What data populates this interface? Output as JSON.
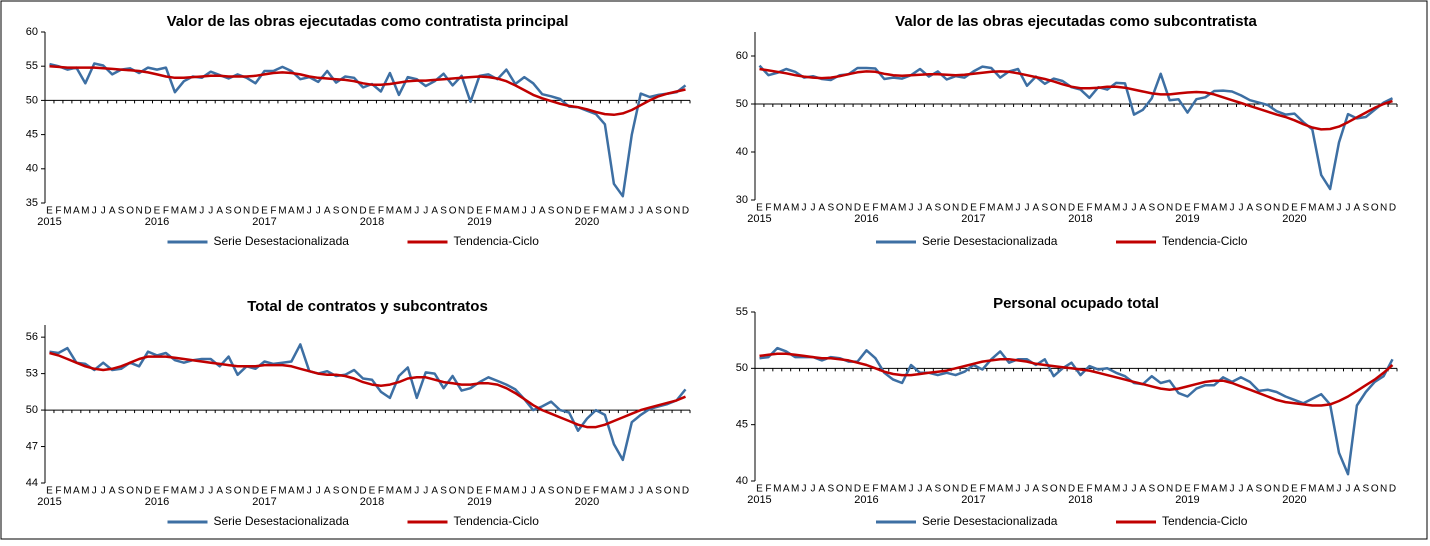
{
  "chart_data": [
    {
      "type": "line",
      "title": "Valor de las obras ejecutadas como contratista principal",
      "legend": "bottom",
      "baseline": 50,
      "categories": [
        "E",
        "F",
        "M",
        "A",
        "M",
        "J",
        "J",
        "A",
        "S",
        "O",
        "N",
        "D",
        "E",
        "F",
        "M",
        "A",
        "M",
        "J",
        "J",
        "A",
        "S",
        "O",
        "N",
        "D",
        "E",
        "F",
        "M",
        "A",
        "M",
        "J",
        "J",
        "A",
        "S",
        "O",
        "N",
        "D",
        "E",
        "F",
        "M",
        "A",
        "M",
        "J",
        "J",
        "A",
        "S",
        "O",
        "N",
        "D",
        "E",
        "F",
        "M",
        "A",
        "M",
        "J",
        "J",
        "A",
        "S",
        "O",
        "N",
        "D",
        "E",
        "F",
        "M",
        "A",
        "M",
        "J",
        "J",
        "A",
        "S",
        "O",
        "N",
        "D"
      ],
      "x_years": [
        "2015",
        "2016",
        "2017",
        "2018",
        "2019",
        "2020"
      ],
      "ylim": [
        35,
        60
      ],
      "yticks": [
        35,
        40,
        45,
        50,
        55,
        60
      ],
      "series": [
        {
          "name": "Serie Desestacionalizada",
          "color": "#3d6fa3",
          "values": [
            55.3,
            55,
            54.5,
            54.8,
            52.5,
            55.4,
            55.1,
            53.8,
            54.5,
            54.7,
            54,
            54.8,
            54.5,
            54.8,
            51.2,
            52.8,
            53.5,
            53.3,
            54.2,
            53.7,
            53.2,
            53.8,
            53.3,
            52.5,
            54.3,
            54.3,
            54.9,
            54.3,
            53.1,
            53.4,
            52.7,
            54.3,
            52.6,
            53.5,
            53.3,
            51.9,
            52.4,
            51.3,
            54,
            50.8,
            53.4,
            53.1,
            52.1,
            52.8,
            53.9,
            52.2,
            53.6,
            49.8,
            53.6,
            53.8,
            53.1,
            54.5,
            52.4,
            53.4,
            52.5,
            50.9,
            50.6,
            50.2,
            49.1,
            49,
            48.5,
            48,
            46.5,
            37.8,
            36,
            45,
            51,
            50.5,
            50.8,
            51,
            51.2,
            52.2
          ]
        },
        {
          "name": "Tendencia-Ciclo",
          "color": "#c00000",
          "values": [
            55,
            54.9,
            54.8,
            54.8,
            54.8,
            54.8,
            54.7,
            54.6,
            54.5,
            54.4,
            54.3,
            54.1,
            53.8,
            53.5,
            53.3,
            53.3,
            53.4,
            53.5,
            53.6,
            53.6,
            53.5,
            53.5,
            53.5,
            53.6,
            53.8,
            54,
            54.1,
            54,
            53.8,
            53.5,
            53.3,
            53.2,
            53.1,
            53,
            52.8,
            52.5,
            52.3,
            52.3,
            52.4,
            52.6,
            52.8,
            52.9,
            52.9,
            53,
            53.1,
            53.2,
            53.3,
            53.4,
            53.5,
            53.4,
            53.2,
            52.8,
            52.2,
            51.5,
            50.8,
            50.3,
            49.9,
            49.5,
            49.2,
            49,
            48.7,
            48.3,
            48,
            47.9,
            48.1,
            48.6,
            49.3,
            50,
            50.6,
            51,
            51.3,
            51.6
          ]
        }
      ]
    },
    {
      "type": "line",
      "title": "Valor de las obras ejecutadas como subcontratista",
      "legend": "bottom",
      "baseline": 50,
      "categories": [
        "E",
        "F",
        "M",
        "A",
        "M",
        "J",
        "J",
        "A",
        "S",
        "O",
        "N",
        "D",
        "E",
        "F",
        "M",
        "A",
        "M",
        "J",
        "J",
        "A",
        "S",
        "O",
        "N",
        "D",
        "E",
        "F",
        "M",
        "A",
        "M",
        "J",
        "J",
        "A",
        "S",
        "O",
        "N",
        "D",
        "E",
        "F",
        "M",
        "A",
        "M",
        "J",
        "J",
        "A",
        "S",
        "O",
        "N",
        "D",
        "E",
        "F",
        "M",
        "A",
        "M",
        "J",
        "J",
        "A",
        "S",
        "O",
        "N",
        "D",
        "E",
        "F",
        "M",
        "A",
        "M",
        "J",
        "J",
        "A",
        "S",
        "O",
        "N",
        "D"
      ],
      "x_years": [
        "2015",
        "2016",
        "2017",
        "2018",
        "2019",
        "2020"
      ],
      "ylim": [
        30,
        65
      ],
      "yticks": [
        30,
        40,
        50,
        60
      ],
      "series": [
        {
          "name": "Serie Desestacionalizada",
          "color": "#3d6fa3",
          "values": [
            58,
            56,
            56.5,
            57.3,
            56.7,
            55.5,
            55.8,
            55.2,
            55,
            56,
            56.2,
            57.5,
            57.5,
            57.4,
            55.2,
            55.5,
            55.3,
            56,
            57.3,
            55.7,
            56.8,
            55.1,
            55.8,
            55.5,
            56.8,
            57.8,
            57.5,
            55.5,
            56.8,
            57.3,
            53.8,
            55.7,
            54.2,
            55.3,
            54.8,
            53.5,
            53,
            51.3,
            53.5,
            53,
            54.4,
            54.3,
            47.8,
            48.8,
            51.2,
            56.3,
            50.8,
            51,
            48.2,
            51,
            51.4,
            52.7,
            52.8,
            52.6,
            51.8,
            50.8,
            50.3,
            49.8,
            48.5,
            47.8,
            48,
            46.2,
            44.7,
            35.2,
            32.3,
            42,
            47.9,
            47,
            47.3,
            48.8,
            50.3,
            51.2
          ]
        },
        {
          "name": "Tendencia-Ciclo",
          "color": "#c00000",
          "values": [
            57.3,
            57,
            56.7,
            56.4,
            56,
            55.7,
            55.5,
            55.4,
            55.5,
            55.8,
            56.2,
            56.6,
            56.8,
            56.7,
            56.3,
            56,
            55.9,
            56,
            56.1,
            56.2,
            56.2,
            56.1,
            56,
            56.1,
            56.3,
            56.5,
            56.7,
            56.8,
            56.7,
            56.4,
            56,
            55.6,
            55.2,
            54.7,
            54.1,
            53.6,
            53.3,
            53.3,
            53.4,
            53.6,
            53.6,
            53.4,
            53,
            52.6,
            52.2,
            52,
            52,
            52.2,
            52.4,
            52.5,
            52.4,
            52,
            51.4,
            50.8,
            50.2,
            49.6,
            49,
            48.4,
            47.8,
            47.3,
            46.6,
            45.8,
            45.1,
            44.7,
            44.8,
            45.3,
            46.2,
            47.2,
            48.2,
            49.2,
            50,
            50.6
          ]
        }
      ]
    },
    {
      "type": "line",
      "title": "Total de contratos y subcontratos",
      "legend": "bottom",
      "baseline": 50,
      "categories": [
        "E",
        "F",
        "M",
        "A",
        "M",
        "J",
        "J",
        "A",
        "S",
        "O",
        "N",
        "D",
        "E",
        "F",
        "M",
        "A",
        "M",
        "J",
        "J",
        "A",
        "S",
        "O",
        "N",
        "D",
        "E",
        "F",
        "M",
        "A",
        "M",
        "J",
        "J",
        "A",
        "S",
        "O",
        "N",
        "D",
        "E",
        "F",
        "M",
        "A",
        "M",
        "J",
        "J",
        "A",
        "S",
        "O",
        "N",
        "D",
        "E",
        "F",
        "M",
        "A",
        "M",
        "J",
        "J",
        "A",
        "S",
        "O",
        "N",
        "D",
        "E",
        "F",
        "M",
        "A",
        "M",
        "J",
        "J",
        "A",
        "S",
        "O",
        "N",
        "D"
      ],
      "x_years": [
        "2015",
        "2016",
        "2017",
        "2018",
        "2019",
        "2020"
      ],
      "ylim": [
        44,
        57
      ],
      "yticks": [
        44,
        47,
        50,
        53,
        56
      ],
      "series": [
        {
          "name": "Serie Desestacionalizada",
          "color": "#3d6fa3",
          "values": [
            54.8,
            54.7,
            55.1,
            53.9,
            53.8,
            53.3,
            53.9,
            53.3,
            53.4,
            53.9,
            53.6,
            54.8,
            54.5,
            54.7,
            54.1,
            53.9,
            54.1,
            54.2,
            54.2,
            53.6,
            54.4,
            52.9,
            53.6,
            53.4,
            54,
            53.8,
            53.9,
            54,
            55.4,
            53.2,
            53,
            53.2,
            52.8,
            52.9,
            53.3,
            52.6,
            52.5,
            51.5,
            51,
            52.8,
            53.5,
            51,
            53.1,
            53,
            51.8,
            52.8,
            51.6,
            51.8,
            52.3,
            52.7,
            52.4,
            52.1,
            51.7,
            50.9,
            50,
            50.3,
            50.7,
            50,
            49.8,
            48.3,
            49.3,
            50,
            49.6,
            47.2,
            45.9,
            49,
            49.6,
            50.1,
            50.3,
            50.5,
            50.8,
            51.7
          ]
        },
        {
          "name": "Tendencia-Ciclo",
          "color": "#c00000",
          "values": [
            54.7,
            54.5,
            54.2,
            53.9,
            53.6,
            53.4,
            53.3,
            53.4,
            53.6,
            53.9,
            54.2,
            54.4,
            54.4,
            54.4,
            54.3,
            54.2,
            54.1,
            54,
            53.9,
            53.8,
            53.7,
            53.6,
            53.6,
            53.6,
            53.7,
            53.7,
            53.7,
            53.6,
            53.4,
            53.2,
            53,
            52.9,
            52.9,
            52.8,
            52.6,
            52.3,
            52.1,
            52,
            52.1,
            52.3,
            52.6,
            52.7,
            52.7,
            52.5,
            52.3,
            52.2,
            52.1,
            52.1,
            52.2,
            52.2,
            52.1,
            51.8,
            51.4,
            50.9,
            50.4,
            50,
            49.7,
            49.4,
            49.1,
            48.8,
            48.6,
            48.6,
            48.8,
            49.1,
            49.4,
            49.7,
            50,
            50.2,
            50.4,
            50.6,
            50.8,
            51.1
          ]
        }
      ]
    },
    {
      "type": "line",
      "title": "Personal ocupado total",
      "legend": "bottom",
      "baseline": 50,
      "categories": [
        "E",
        "F",
        "M",
        "A",
        "M",
        "J",
        "J",
        "A",
        "S",
        "O",
        "N",
        "D",
        "E",
        "F",
        "M",
        "A",
        "M",
        "J",
        "J",
        "A",
        "S",
        "O",
        "N",
        "D",
        "E",
        "F",
        "M",
        "A",
        "M",
        "J",
        "J",
        "A",
        "S",
        "O",
        "N",
        "D",
        "E",
        "F",
        "M",
        "A",
        "M",
        "J",
        "J",
        "A",
        "S",
        "O",
        "N",
        "D",
        "E",
        "F",
        "M",
        "A",
        "M",
        "J",
        "J",
        "A",
        "S",
        "O",
        "N",
        "D",
        "E",
        "F",
        "M",
        "A",
        "M",
        "J",
        "J",
        "A",
        "S",
        "O",
        "N",
        "D"
      ],
      "x_years": [
        "2015",
        "2016",
        "2017",
        "2018",
        "2019",
        "2020"
      ],
      "ylim": [
        40,
        55
      ],
      "yticks": [
        40,
        45,
        50,
        55
      ],
      "series": [
        {
          "name": "Serie Desestacionalizada",
          "color": "#3d6fa3",
          "values": [
            50.9,
            51,
            51.8,
            51.5,
            51,
            51,
            51,
            50.7,
            51,
            50.9,
            50.6,
            50.6,
            51.6,
            50.9,
            49.6,
            49,
            48.7,
            50.3,
            49.6,
            49.6,
            49.4,
            49.6,
            49.4,
            49.7,
            50.3,
            49.9,
            50.8,
            51.5,
            50.5,
            50.8,
            50.8,
            50.3,
            50.8,
            49.3,
            50,
            50.5,
            49.4,
            50.2,
            49.9,
            50,
            49.6,
            49.3,
            48.7,
            48.6,
            49.3,
            48.7,
            48.9,
            47.8,
            47.5,
            48.2,
            48.5,
            48.5,
            49.2,
            48.8,
            49.2,
            48.8,
            48,
            48.1,
            47.9,
            47.5,
            47.2,
            46.9,
            47.3,
            47.7,
            46.8,
            42.5,
            40.6,
            46.7,
            47.9,
            48.8,
            49.3,
            50.8
          ]
        },
        {
          "name": "Tendencia-Ciclo",
          "color": "#c00000",
          "values": [
            51.1,
            51.2,
            51.3,
            51.3,
            51.2,
            51.1,
            51,
            50.9,
            50.9,
            50.8,
            50.7,
            50.5,
            50.3,
            50,
            49.7,
            49.5,
            49.4,
            49.4,
            49.5,
            49.6,
            49.7,
            49.8,
            50,
            50.2,
            50.4,
            50.6,
            50.7,
            50.8,
            50.8,
            50.7,
            50.6,
            50.4,
            50.3,
            50.2,
            50.1,
            50,
            49.9,
            49.8,
            49.6,
            49.4,
            49.2,
            49,
            48.8,
            48.6,
            48.4,
            48.2,
            48.1,
            48.2,
            48.4,
            48.6,
            48.8,
            48.9,
            48.9,
            48.7,
            48.4,
            48.1,
            47.8,
            47.5,
            47.2,
            47,
            46.9,
            46.8,
            46.7,
            46.7,
            46.8,
            47.1,
            47.5,
            48,
            48.5,
            49,
            49.6,
            50.3
          ]
        }
      ]
    }
  ]
}
